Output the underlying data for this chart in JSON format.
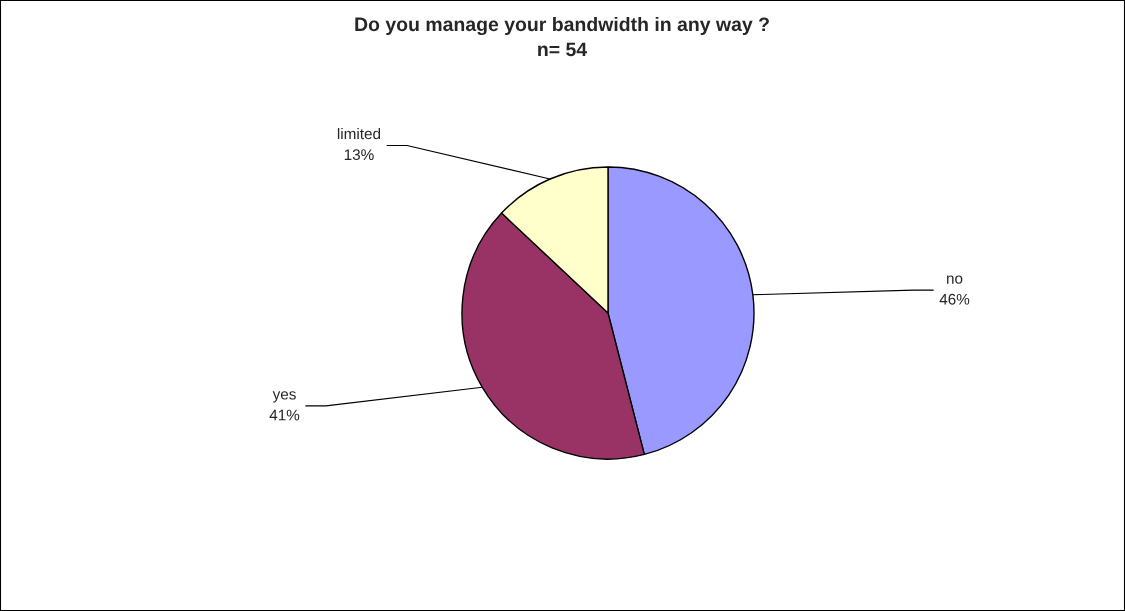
{
  "chart_data": {
    "type": "pie",
    "title": "Do you manage your bandwidth in any way ?",
    "subtitle": "n= 54",
    "categories": [
      "no",
      "yes",
      "limited"
    ],
    "values": [
      46,
      41,
      13
    ],
    "value_labels": [
      "46%",
      "41%",
      "13%"
    ],
    "colors": [
      "#9999ff",
      "#993366",
      "#ffffcc"
    ],
    "legend": false
  }
}
